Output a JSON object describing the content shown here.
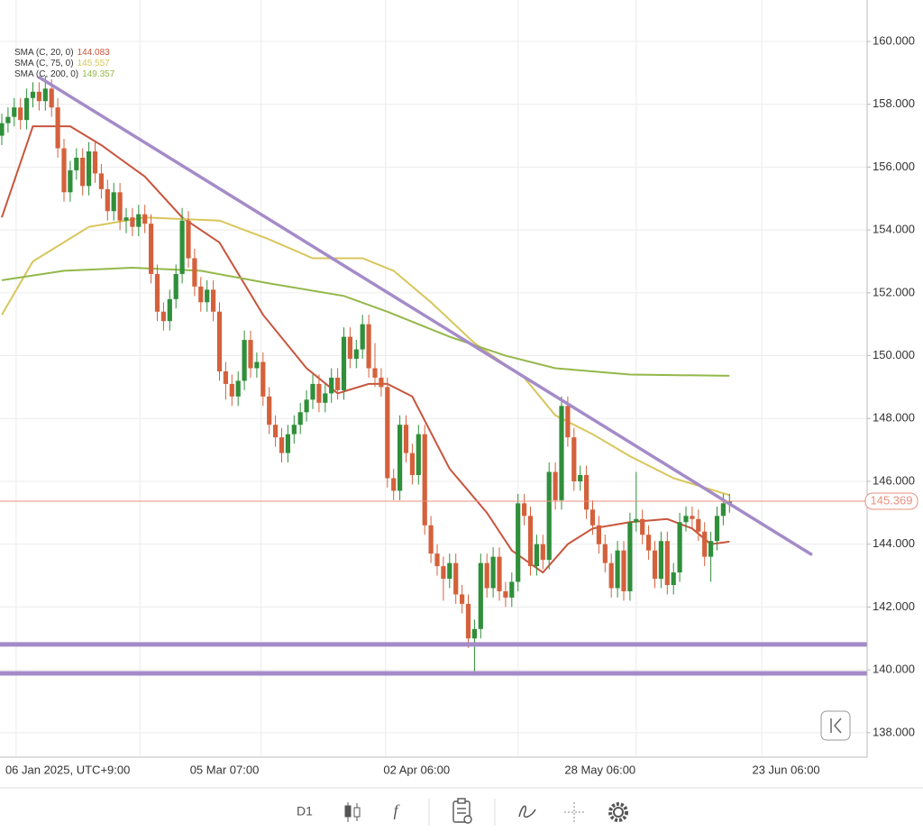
{
  "chart_data": {
    "type": "candlestick",
    "timeframe": "D1",
    "xlim": [
      -0.29,
      139.13
    ],
    "ylim": [
      137.22,
      161.32
    ],
    "yticks": [
      {
        "value": 138,
        "label": "138.000"
      },
      {
        "value": 140,
        "label": "140.000"
      },
      {
        "value": 142,
        "label": "142.000"
      },
      {
        "value": 144,
        "label": "144.000"
      },
      {
        "value": 146,
        "label": "146.000"
      },
      {
        "value": 148,
        "label": "148.000"
      },
      {
        "value": 150,
        "label": "150.000"
      },
      {
        "value": 152,
        "label": "152.000"
      },
      {
        "value": 154,
        "label": "154.000"
      },
      {
        "value": 156,
        "label": "156.000"
      },
      {
        "value": 158,
        "label": "158.000"
      },
      {
        "value": 160,
        "label": "160.000"
      }
    ],
    "xticks": [
      {
        "value": 10.6,
        "label": "06 Jan 2025, UTC+9:00"
      },
      {
        "value": 35.8,
        "label": "05 Mar 07:00"
      },
      {
        "value": 66.7,
        "label": "02 Apr 06:00"
      },
      {
        "value": 96.2,
        "label": "28 May 06:00"
      },
      {
        "value": 126.1,
        "label": "23 Jun 06:00"
      }
    ],
    "xgrid": [
      2.3,
      22.2,
      41.7,
      61.7,
      83.0,
      102.0,
      122.2
    ],
    "grid": true,
    "up_color": "#2f8f3a",
    "down_color": "#d4613b",
    "open": [
      157.0,
      157.4,
      157.6,
      157.9,
      157.5,
      158.2,
      158.4,
      158.1,
      158.5,
      157.9,
      156.6,
      155.2,
      155.9,
      156.3,
      155.4,
      156.5,
      155.8,
      155.3,
      154.6,
      155.2,
      154.3,
      154.4,
      154.1,
      154.5,
      154.2,
      152.6,
      151.4,
      151.1,
      151.8,
      152.6,
      154.3,
      153.1,
      152.2,
      151.7,
      152.1,
      151.4,
      149.5,
      149.1,
      148.7,
      149.2,
      150.5,
      149.6,
      149.8,
      148.7,
      147.8,
      147.4,
      146.9,
      147.5,
      147.8,
      148.2,
      148.6,
      149.1,
      148.5,
      148.8,
      149.3,
      148.9,
      150.6,
      149.9,
      150.2,
      151.0,
      149.6,
      149.3,
      149.0,
      146.1,
      145.7,
      147.8,
      146.9,
      146.2,
      147.5,
      144.6,
      143.7,
      143.3,
      142.9,
      143.4,
      142.4,
      142.1,
      141.0,
      141.3,
      143.4,
      142.6,
      143.6,
      142.5,
      142.3,
      142.8,
      145.3,
      144.9,
      143.3,
      144.0,
      143.5,
      146.3,
      145.4,
      148.4,
      147.4,
      146.0,
      146.2,
      145.1,
      144.6,
      144.0,
      143.4,
      142.6,
      143.8,
      142.5,
      144.7,
      144.8,
      144.3,
      143.8,
      142.9,
      144.1,
      142.7,
      143.1,
      144.7,
      144.9,
      144.8,
      144.4,
      143.6,
      144.1,
      144.9,
      145.3
    ],
    "high": [
      157.7,
      157.9,
      158.2,
      158.2,
      158.5,
      158.7,
      158.7,
      158.9,
      158.8,
      158.2,
      156.9,
      156.2,
      156.6,
      156.6,
      156.8,
      156.8,
      156.1,
      155.6,
      155.5,
      155.5,
      154.7,
      154.7,
      154.8,
      154.8,
      154.5,
      152.9,
      151.7,
      152.1,
      152.9,
      154.7,
      154.6,
      153.4,
      152.5,
      152.4,
      152.4,
      151.7,
      149.8,
      149.4,
      149.5,
      150.8,
      150.8,
      150.1,
      150.1,
      149.0,
      148.1,
      147.7,
      147.8,
      148.1,
      148.5,
      148.9,
      149.4,
      149.4,
      149.1,
      149.6,
      149.6,
      150.9,
      150.9,
      150.5,
      151.3,
      151.3,
      150.4,
      149.6,
      149.3,
      146.4,
      148.1,
      148.1,
      147.2,
      147.8,
      147.8,
      144.9,
      144.0,
      143.6,
      143.7,
      143.7,
      142.7,
      142.4,
      141.6,
      143.7,
      143.7,
      143.9,
      143.9,
      142.8,
      143.1,
      145.6,
      145.6,
      145.2,
      144.3,
      144.3,
      146.6,
      146.6,
      148.7,
      148.7,
      147.7,
      146.5,
      146.5,
      145.4,
      144.9,
      144.3,
      143.7,
      144.1,
      144.1,
      145.0,
      146.3,
      145.1,
      144.6,
      144.1,
      144.4,
      144.4,
      143.4,
      145.0,
      145.2,
      145.2,
      145.1,
      144.7,
      144.4,
      145.2,
      145.6,
      145.6
    ],
    "low": [
      156.7,
      157.1,
      157.3,
      157.2,
      157.2,
      157.9,
      157.8,
      157.8,
      157.6,
      156.3,
      154.9,
      154.9,
      155.6,
      155.1,
      155.1,
      155.5,
      155.0,
      154.3,
      154.3,
      154.0,
      153.9,
      153.8,
      153.8,
      153.9,
      152.3,
      151.1,
      150.8,
      150.8,
      151.5,
      152.3,
      152.8,
      151.9,
      151.4,
      151.4,
      151.1,
      149.2,
      148.6,
      148.4,
      148.4,
      148.9,
      149.3,
      149.3,
      148.4,
      147.5,
      147.1,
      146.6,
      146.6,
      147.2,
      147.5,
      147.9,
      148.3,
      148.2,
      148.2,
      148.5,
      148.6,
      148.6,
      149.6,
      149.6,
      149.9,
      149.3,
      149.0,
      148.7,
      145.8,
      145.4,
      145.4,
      146.6,
      145.9,
      145.9,
      144.3,
      143.4,
      143.0,
      142.2,
      142.6,
      142.1,
      141.8,
      140.7,
      139.9,
      141.0,
      142.3,
      142.3,
      142.2,
      142.0,
      142.0,
      142.5,
      144.6,
      143.0,
      143.0,
      143.2,
      143.2,
      145.1,
      145.1,
      147.1,
      145.7,
      145.7,
      144.8,
      144.3,
      143.7,
      143.1,
      142.3,
      142.3,
      142.2,
      142.2,
      144.4,
      144.0,
      143.5,
      142.6,
      142.6,
      142.4,
      142.4,
      142.8,
      144.4,
      144.5,
      144.1,
      143.3,
      142.8,
      143.8,
      144.6,
      145.0
    ],
    "close": [
      157.4,
      157.6,
      157.9,
      157.5,
      158.2,
      158.4,
      158.1,
      158.5,
      157.9,
      156.6,
      155.2,
      155.9,
      156.3,
      155.4,
      156.5,
      155.8,
      155.3,
      154.6,
      155.2,
      154.3,
      154.4,
      154.1,
      154.5,
      154.2,
      152.6,
      151.4,
      151.1,
      151.8,
      152.6,
      154.3,
      153.1,
      152.2,
      151.7,
      152.1,
      151.4,
      149.5,
      149.1,
      148.7,
      149.2,
      150.5,
      149.6,
      149.8,
      148.7,
      147.8,
      147.4,
      146.9,
      147.5,
      147.8,
      148.2,
      148.6,
      149.1,
      148.5,
      148.8,
      149.3,
      148.9,
      150.6,
      149.9,
      150.2,
      151.0,
      149.6,
      149.3,
      149.0,
      146.1,
      145.7,
      147.8,
      146.9,
      146.2,
      147.5,
      144.6,
      143.7,
      143.3,
      142.9,
      143.4,
      142.4,
      142.1,
      141.0,
      141.3,
      143.4,
      142.6,
      143.6,
      142.5,
      142.3,
      142.8,
      145.3,
      144.9,
      143.3,
      144.0,
      143.5,
      146.3,
      145.4,
      148.4,
      147.4,
      146.0,
      146.2,
      145.1,
      144.6,
      144.0,
      143.4,
      142.6,
      143.8,
      142.5,
      144.7,
      144.8,
      144.3,
      143.8,
      142.9,
      144.1,
      142.7,
      143.1,
      144.7,
      144.9,
      144.8,
      144.4,
      143.6,
      144.1,
      144.9,
      145.3,
      145.37
    ],
    "series": [
      {
        "name": "SMA (C, 20, 0)",
        "last": 144.083,
        "color": "#c8553d",
        "x": [
          0,
          5,
          11,
          16,
          23,
          29,
          35,
          42,
          49,
          54,
          59,
          62,
          66,
          72,
          78,
          82,
          87,
          91,
          95,
          101,
          107,
          111,
          114,
          117
        ],
        "values": [
          154.4,
          157.3,
          157.3,
          156.7,
          155.7,
          154.4,
          153.6,
          151.3,
          149.6,
          148.8,
          149.1,
          149.1,
          148.7,
          146.4,
          145.0,
          143.8,
          143.1,
          144.0,
          144.5,
          144.7,
          144.8,
          144.5,
          144.0,
          144.08
        ]
      },
      {
        "name": "SMA (C, 75, 0)",
        "last": 145.557,
        "color": "#d9c65c",
        "x": [
          0,
          5,
          14,
          23,
          35,
          43,
          50,
          58,
          63,
          69,
          76,
          84,
          89,
          95,
          101,
          108,
          117
        ],
        "values": [
          151.3,
          153.0,
          154.1,
          154.4,
          154.3,
          153.7,
          153.1,
          153.1,
          152.7,
          151.7,
          150.4,
          149.3,
          148.1,
          147.5,
          146.8,
          146.1,
          145.56
        ]
      },
      {
        "name": "SMA (C, 200, 0)",
        "last": 149.357,
        "color": "#93b84a",
        "x": [
          0,
          10,
          21,
          32,
          43,
          55,
          62,
          72,
          81,
          89,
          101,
          117
        ],
        "values": [
          152.4,
          152.7,
          152.8,
          152.7,
          152.3,
          151.9,
          151.4,
          150.6,
          150.0,
          149.6,
          149.4,
          149.36
        ]
      }
    ],
    "trendline": {
      "color": "#a48bc8",
      "x": [
        6.1,
        130.1
      ],
      "values": [
        158.85,
        143.68
      ]
    },
    "hlines": {
      "color": "#a48bc8",
      "values": [
        140.81,
        139.89
      ]
    },
    "last_price": {
      "value": 145.369,
      "label": "145.369",
      "color": "#e8907e"
    }
  }
}
